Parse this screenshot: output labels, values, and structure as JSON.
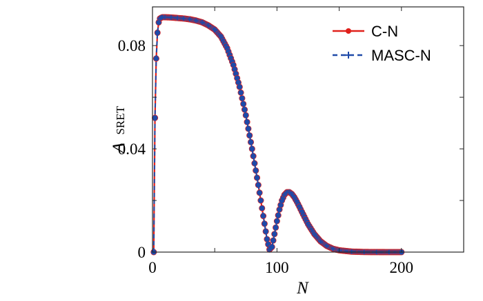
{
  "chart_data": {
    "type": "line",
    "xlabel": "N",
    "ylabel_main": "Δ",
    "ylabel_sub": "SRET",
    "xlim": [
      0,
      250
    ],
    "ylim": [
      0,
      0.095
    ],
    "xticks": [
      0,
      100,
      200
    ],
    "xtick_labels": [
      "0",
      "100",
      "200"
    ],
    "yticks": [
      0,
      0.04,
      0.08
    ],
    "ytick_labels": [
      "0",
      "0.04",
      "0.08"
    ],
    "grid": false,
    "legend_position": "top-right",
    "colors": {
      "c_n": "#e0201b",
      "masc_n": "#1f4aa8"
    },
    "series": [
      {
        "name": "C-N",
        "style": "solid line with circle markers",
        "x": [
          1,
          2,
          3,
          4,
          5,
          6,
          7,
          8,
          10,
          15,
          20,
          25,
          30,
          35,
          40,
          45,
          50,
          55,
          60,
          65,
          70,
          75,
          80,
          85,
          88,
          90,
          92,
          94,
          96,
          98,
          100,
          102,
          104,
          106,
          108,
          110,
          112,
          114,
          116,
          118,
          120,
          125,
          130,
          135,
          140,
          145,
          150,
          160,
          170,
          180,
          190,
          200
        ],
        "y": [
          0,
          0.052,
          0.075,
          0.085,
          0.089,
          0.0905,
          0.0908,
          0.091,
          0.091,
          0.0909,
          0.0907,
          0.0905,
          0.0902,
          0.0897,
          0.089,
          0.0878,
          0.0862,
          0.0835,
          0.079,
          0.0725,
          0.064,
          0.053,
          0.04,
          0.026,
          0.017,
          0.011,
          0.005,
          0.001,
          0.002,
          0.007,
          0.012,
          0.0165,
          0.02,
          0.0222,
          0.0232,
          0.0232,
          0.0225,
          0.0212,
          0.0195,
          0.0176,
          0.0156,
          0.0108,
          0.007,
          0.0042,
          0.0024,
          0.0013,
          0.0007,
          0.0002,
          5e-05,
          1e-05,
          0.0,
          0.0
        ]
      },
      {
        "name": "MASC-N",
        "style": "dashed line with plus markers",
        "x": [
          1,
          2,
          3,
          4,
          5,
          6,
          7,
          8,
          10,
          15,
          20,
          25,
          30,
          35,
          40,
          45,
          50,
          55,
          60,
          65,
          70,
          75,
          80,
          85,
          88,
          90,
          92,
          94,
          96,
          98,
          100,
          102,
          104,
          106,
          108,
          110,
          112,
          114,
          116,
          118,
          120,
          125,
          130,
          135,
          140,
          145,
          150,
          160,
          170,
          180,
          190,
          200
        ],
        "y": [
          0,
          0.052,
          0.075,
          0.085,
          0.089,
          0.0905,
          0.0908,
          0.091,
          0.091,
          0.0909,
          0.0907,
          0.0905,
          0.0902,
          0.0897,
          0.089,
          0.0878,
          0.0862,
          0.0835,
          0.079,
          0.0725,
          0.064,
          0.053,
          0.04,
          0.026,
          0.017,
          0.011,
          0.005,
          0.001,
          0.002,
          0.007,
          0.012,
          0.0165,
          0.02,
          0.0222,
          0.0232,
          0.0232,
          0.0225,
          0.0212,
          0.0195,
          0.0176,
          0.0156,
          0.0108,
          0.007,
          0.0042,
          0.0024,
          0.0013,
          0.0007,
          0.0002,
          5e-05,
          1e-05,
          0.0,
          0.0
        ]
      }
    ]
  }
}
